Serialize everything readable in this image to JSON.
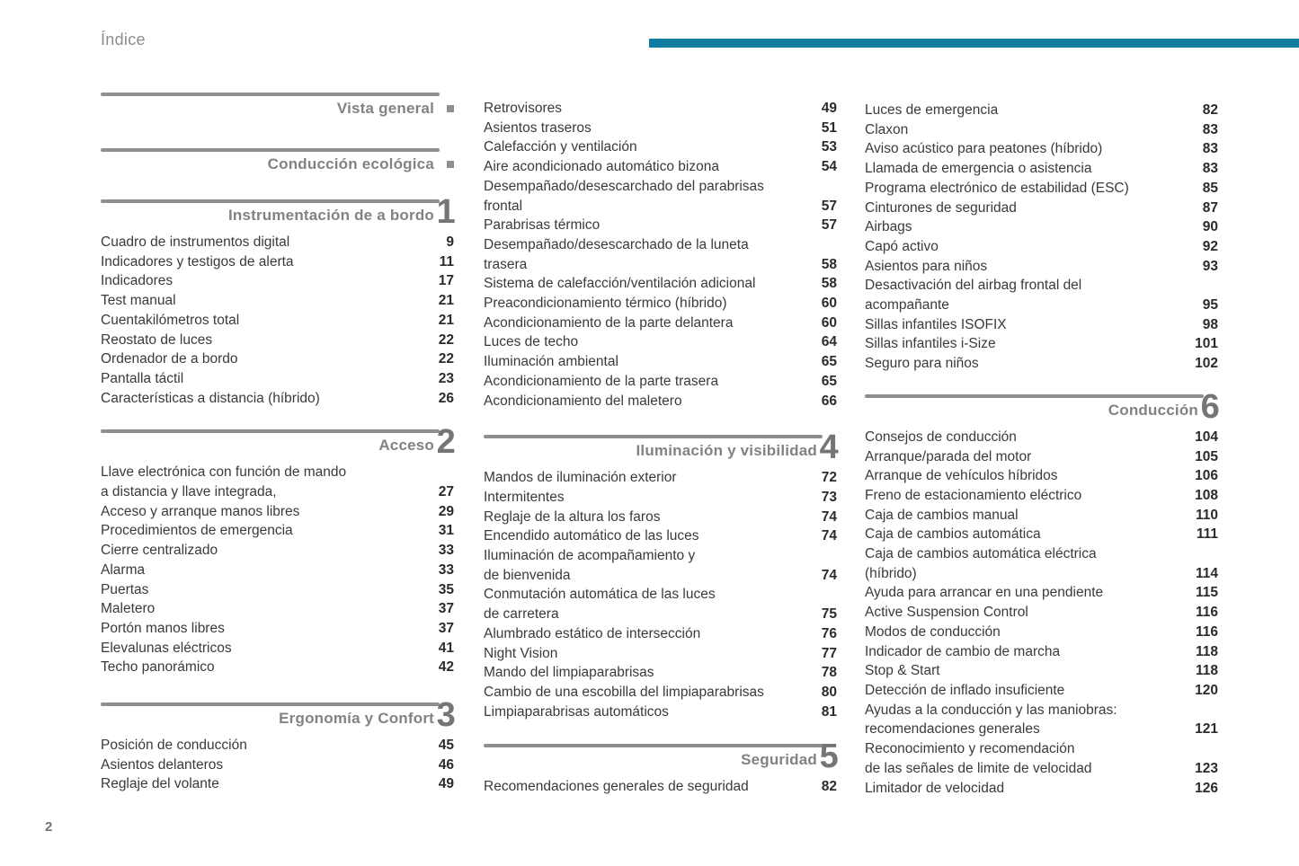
{
  "page": {
    "title": "Índice",
    "folio": "2",
    "accent_color": "#107CA0",
    "rule_color": "#8e8e8e"
  },
  "columns": [
    {
      "blocks": [
        {
          "type": "section",
          "title": "Vista general",
          "marker": "square"
        },
        {
          "type": "section",
          "title": "Conducción ecológica",
          "marker": "square"
        },
        {
          "type": "section",
          "title": "Instrumentación de a bordo",
          "num": "1"
        },
        {
          "type": "entries",
          "rows": [
            [
              "Cuadro de instrumentos digital",
              "9"
            ],
            [
              "Indicadores y testigos de alerta",
              "11"
            ],
            [
              "Indicadores",
              "17"
            ],
            [
              "Test manual",
              "21"
            ],
            [
              "Cuentakilómetros total",
              "21"
            ],
            [
              "Reostato de luces",
              "22"
            ],
            [
              "Ordenador de a bordo",
              "22"
            ],
            [
              "Pantalla táctil",
              "23"
            ],
            [
              "Características a distancia (híbrido)",
              "26"
            ]
          ]
        },
        {
          "type": "section",
          "title": "Acceso",
          "num": "2"
        },
        {
          "type": "entries",
          "rows": [
            [
              "Llave electrónica con función de mando",
              ""
            ],
            [
              "a distancia y llave integrada,",
              "27"
            ],
            [
              "Acceso y arranque manos libres",
              "29"
            ],
            [
              "Procedimientos de emergencia",
              "31"
            ],
            [
              "Cierre centralizado",
              "33"
            ],
            [
              "Alarma",
              "33"
            ],
            [
              "Puertas",
              "35"
            ],
            [
              "Maletero",
              "37"
            ],
            [
              "Portón manos libres",
              "37"
            ],
            [
              "Elevalunas eléctricos",
              "41"
            ],
            [
              "Techo panorámico",
              "42"
            ]
          ]
        },
        {
          "type": "section",
          "title": "Ergonomía y Confort",
          "num": "3"
        },
        {
          "type": "entries",
          "rows": [
            [
              "Posición de conducción",
              "45"
            ],
            [
              "Asientos delanteros",
              "46"
            ],
            [
              "Reglaje del volante",
              "49"
            ]
          ]
        }
      ]
    },
    {
      "blocks": [
        {
          "type": "entries",
          "rows": [
            [
              "Retrovisores",
              "49"
            ],
            [
              "Asientos traseros",
              "51"
            ],
            [
              "Calefacción y ventilación",
              "53"
            ],
            [
              "Aire acondicionado automático bizona",
              "54"
            ],
            [
              "Desempañado/desescarchado del parabrisas",
              ""
            ],
            [
              "frontal",
              "57"
            ],
            [
              "Parabrisas térmico",
              "57"
            ],
            [
              "Desempañado/desescarchado de la luneta",
              ""
            ],
            [
              "trasera",
              "58"
            ],
            [
              "Sistema de calefacción/ventilación adicional",
              "58"
            ],
            [
              "Preacondicionamiento térmico (híbrido)",
              "60"
            ],
            [
              "Acondicionamiento de la parte delantera",
              "60"
            ],
            [
              "Luces de techo",
              "64"
            ],
            [
              "Iluminación ambiental",
              "65"
            ],
            [
              "Acondicionamiento de la parte trasera",
              "65"
            ],
            [
              "Acondicionamiento del maletero",
              "66"
            ]
          ]
        },
        {
          "type": "section",
          "title": "Iluminación y visibilidad",
          "num": "4"
        },
        {
          "type": "entries",
          "rows": [
            [
              "Mandos de iluminación exterior",
              "72"
            ],
            [
              "Intermitentes",
              "73"
            ],
            [
              "Reglaje de la altura los faros",
              "74"
            ],
            [
              "Encendido automático de las luces",
              "74"
            ],
            [
              "Iluminación de acompañamiento y",
              ""
            ],
            [
              "de bienvenida",
              "74"
            ],
            [
              "Conmutación automática de las luces",
              ""
            ],
            [
              "de carretera",
              "75"
            ],
            [
              "Alumbrado estático de intersección",
              "76"
            ],
            [
              "Night Vision",
              "77"
            ],
            [
              "Mando del limpiaparabrisas",
              "78"
            ],
            [
              "Cambio de una escobilla del limpiaparabrisas",
              "80"
            ],
            [
              "Limpiaparabrisas automáticos",
              "81"
            ]
          ]
        },
        {
          "type": "section",
          "title": "Seguridad",
          "num": "5"
        },
        {
          "type": "entries",
          "rows": [
            [
              "Recomendaciones generales de seguridad",
              "82"
            ]
          ]
        }
      ]
    },
    {
      "blocks": [
        {
          "type": "entries",
          "rows": [
            [
              "Luces de emergencia",
              "82"
            ],
            [
              "Claxon",
              "83"
            ],
            [
              "Aviso acústico para peatones (híbrido)",
              "83"
            ],
            [
              "Llamada de emergencia o asistencia",
              "83"
            ],
            [
              "Programa electrónico de estabilidad (ESC)",
              "85"
            ],
            [
              "Cinturones de seguridad",
              "87"
            ],
            [
              "Airbags",
              "90"
            ],
            [
              "Capó activo",
              "92"
            ],
            [
              "Asientos para niños",
              "93"
            ],
            [
              "Desactivación del airbag frontal del",
              ""
            ],
            [
              "acompañante",
              "95"
            ],
            [
              "Sillas infantiles ISOFIX",
              "98"
            ],
            [
              "Sillas infantiles i-Size",
              "101"
            ],
            [
              "Seguro para niños",
              "102"
            ]
          ]
        },
        {
          "type": "section",
          "title": "Conducción",
          "num": "6"
        },
        {
          "type": "entries",
          "rows": [
            [
              "Consejos de conducción",
              "104"
            ],
            [
              "Arranque/parada del motor",
              "105"
            ],
            [
              "Arranque de vehículos híbridos",
              "106"
            ],
            [
              "Freno de estacionamiento eléctrico",
              "108"
            ],
            [
              "Caja de cambios manual",
              "110"
            ],
            [
              "Caja de cambios automática",
              "111"
            ],
            [
              "Caja de cambios automática eléctrica",
              ""
            ],
            [
              "(híbrido)",
              "114"
            ],
            [
              "Ayuda para arrancar en una pendiente",
              "115"
            ],
            [
              "Active Suspension Control",
              "116"
            ],
            [
              "Modos de conducción",
              "116"
            ],
            [
              "Indicador de cambio de marcha",
              "118"
            ],
            [
              "Stop & Start",
              "118"
            ],
            [
              "Detección de inflado insuficiente",
              "120"
            ],
            [
              "Ayudas a la conducción y las maniobras:",
              ""
            ],
            [
              "recomendaciones generales",
              "121"
            ],
            [
              "Reconocimiento y recomendación",
              ""
            ],
            [
              "de las señales de limite de velocidad",
              "123"
            ],
            [
              "Limitador de velocidad",
              "126"
            ]
          ]
        }
      ]
    }
  ]
}
